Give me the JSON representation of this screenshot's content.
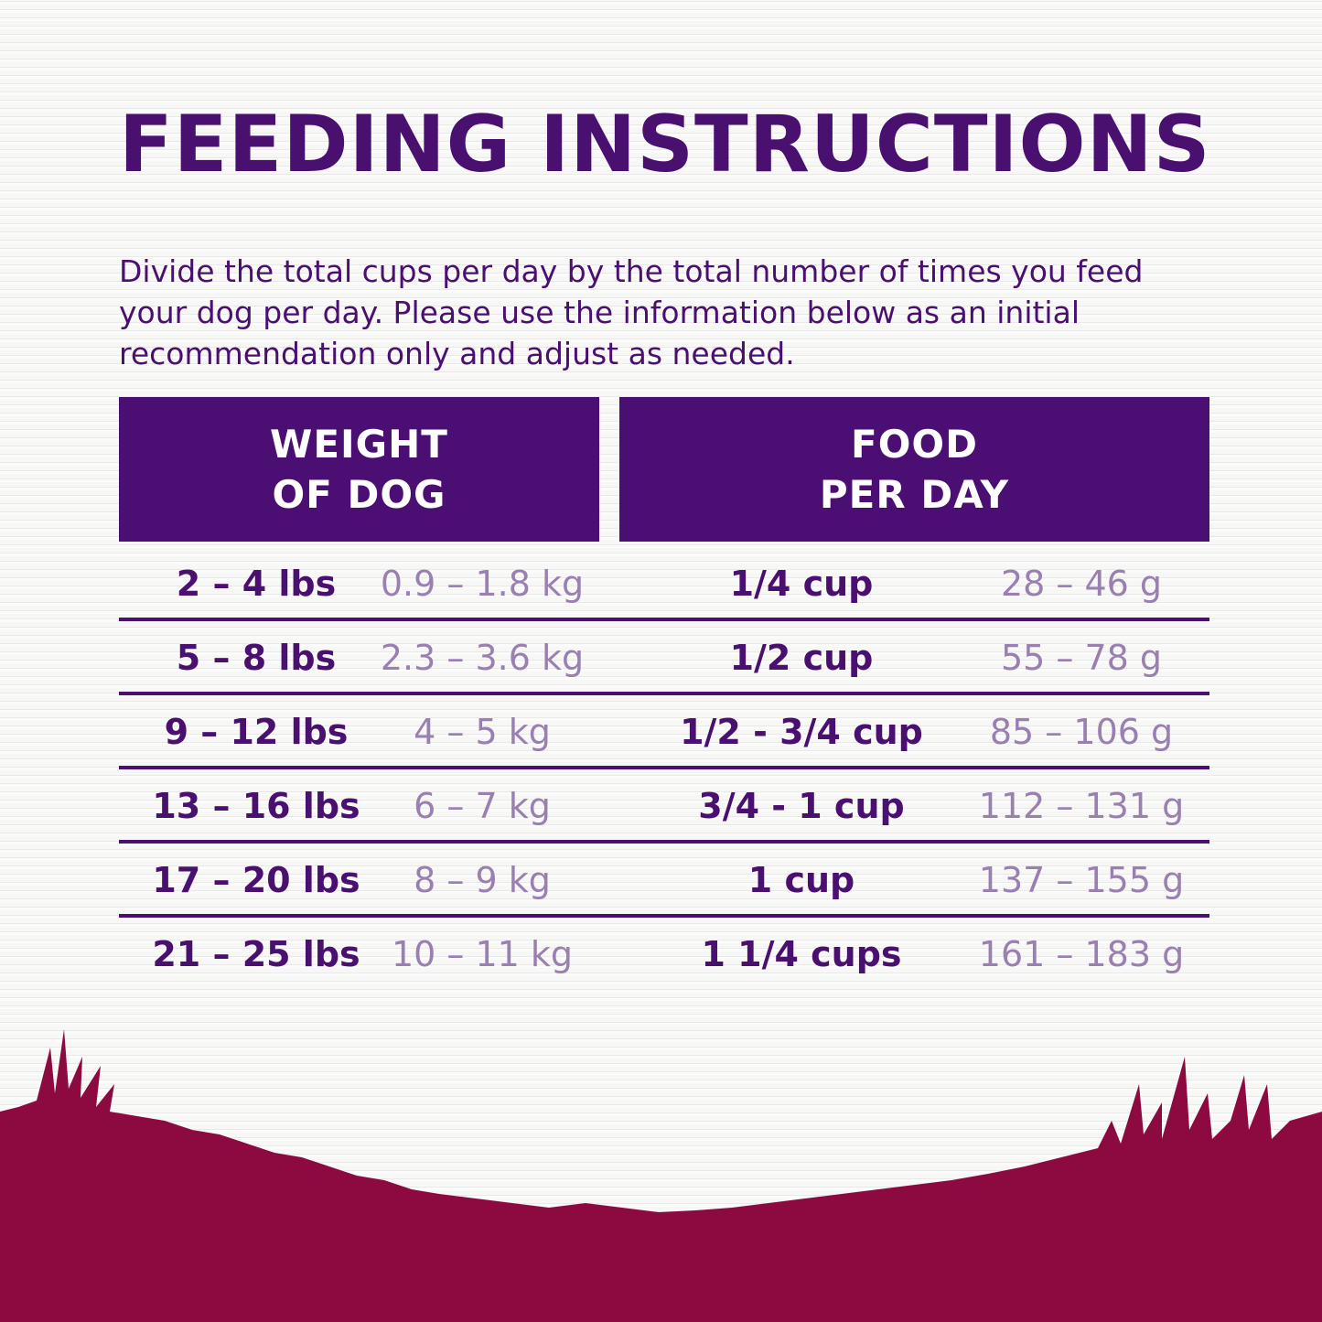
{
  "title": "FEEDING INSTRUCTIONS",
  "intro": "Divide the total cups per day by the total number of times you feed your dog per day. Please use the information below as an initial recommendation only and adjust as needed.",
  "table": {
    "headers": [
      {
        "line1": "WEIGHT",
        "line2": "OF DOG"
      },
      {
        "line1": "FOOD",
        "line2": "PER DAY"
      }
    ],
    "rows": [
      {
        "lbs": "2 – 4 lbs",
        "kg": "0.9 – 1.8 kg",
        "cups": "1/4 cup",
        "grams": "28 – 46 g"
      },
      {
        "lbs": "5 – 8 lbs",
        "kg": "2.3 – 3.6 kg",
        "cups": "1/2 cup",
        "grams": "55 – 78 g"
      },
      {
        "lbs": "9 – 12 lbs",
        "kg": "4 – 5 kg",
        "cups": "1/2 - 3/4 cup",
        "grams": "85 – 106 g"
      },
      {
        "lbs": "13 – 16 lbs",
        "kg": "6 – 7 kg",
        "cups": "3/4 - 1 cup",
        "grams": "112 – 131 g"
      },
      {
        "lbs": "17 – 20 lbs",
        "kg": "8 – 9 kg",
        "cups": "1 cup",
        "grams": "137 – 155 g"
      },
      {
        "lbs": "21 – 25 lbs",
        "kg": "10 – 11 kg",
        "cups": "1 1/4 cups",
        "grams": "161 – 183 g"
      }
    ]
  },
  "colors": {
    "primary": "#4a1070",
    "secondary": "#9a80b0",
    "grass": "#8c0a40"
  }
}
